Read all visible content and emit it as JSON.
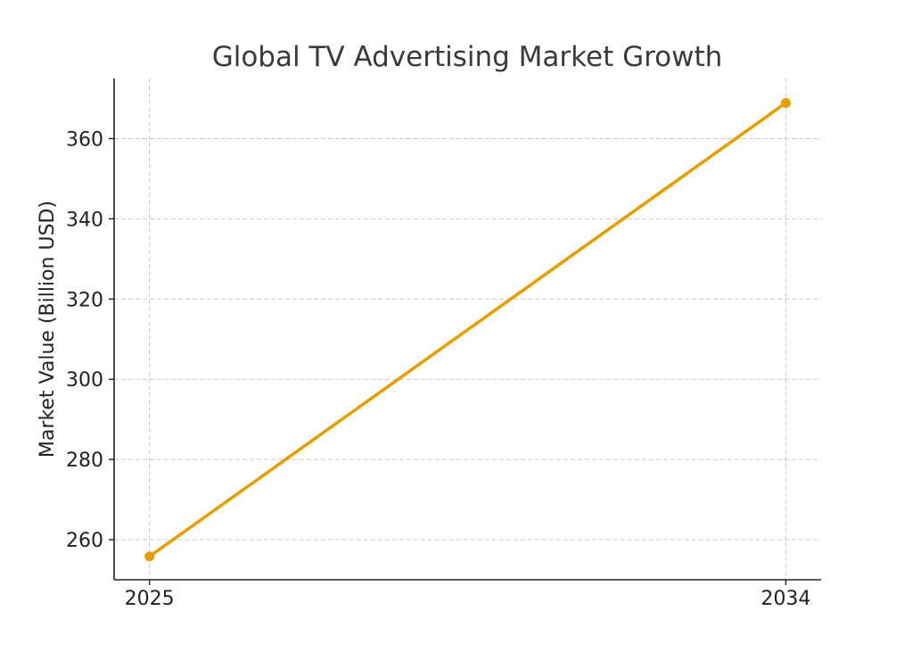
{
  "chart_data": {
    "type": "line",
    "title": "Global TV Advertising Market Growth",
    "xlabel": "",
    "ylabel": "Market Value (Billion USD)",
    "categories": [
      "2025",
      "2034"
    ],
    "series": [
      {
        "values": [
          255.8,
          368.9
        ],
        "color": "#E69F00"
      }
    ],
    "xlim": [
      2024.5,
      2034.5
    ],
    "ylim": [
      250,
      375
    ],
    "yticks": [
      260,
      280,
      300,
      320,
      340,
      360
    ],
    "grid": true,
    "legend": "none"
  }
}
